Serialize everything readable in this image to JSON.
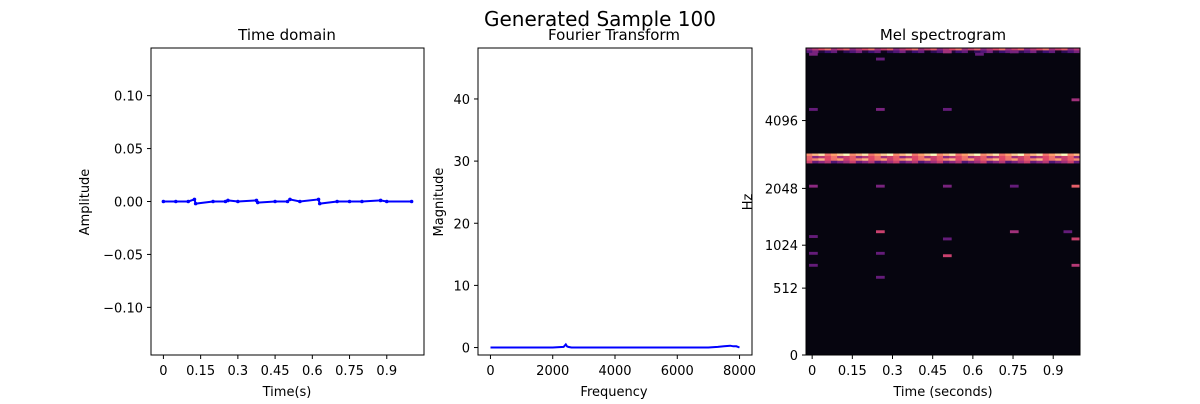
{
  "figure": {
    "suptitle": "Generated Sample 100"
  },
  "chart_data": [
    {
      "type": "line",
      "title": "Time domain",
      "xlabel": "Time(s)",
      "ylabel": "Amplitude",
      "xlim": [
        -0.05,
        1.05
      ],
      "ylim": [
        -0.145,
        0.145
      ],
      "xticks": [
        0,
        0.15,
        0.3,
        0.45,
        0.6,
        0.75,
        0.9
      ],
      "xtick_labels": [
        "0",
        "0.15",
        "0.3",
        "0.45",
        "0.6",
        "0.75",
        "0.9"
      ],
      "yticks": [
        -0.1,
        -0.05,
        0.0,
        0.05,
        0.1
      ],
      "ytick_labels": [
        "−0.10",
        "−0.05",
        "0.00",
        "0.05",
        "0.10"
      ],
      "line_color": "#0000ff",
      "series": [
        {
          "x": [
            0,
            0.05,
            0.1,
            0.125,
            0.13,
            0.2,
            0.25,
            0.26,
            0.3,
            0.375,
            0.38,
            0.45,
            0.5,
            0.51,
            0.55,
            0.625,
            0.63,
            0.7,
            0.75,
            0.8,
            0.875,
            0.9,
            1.0
          ],
          "values": [
            0.0,
            0.0,
            0.0,
            0.002,
            -0.002,
            0.0,
            0.0,
            0.001,
            0.0,
            0.001,
            -0.001,
            0.0,
            0.0,
            0.002,
            0.0,
            0.002,
            -0.002,
            0.0,
            0.0,
            0.0,
            0.001,
            0.0,
            0.0
          ]
        }
      ]
    },
    {
      "type": "line",
      "title": "Fourier Transform",
      "xlabel": "Frequency",
      "ylabel": "Magnitude",
      "xlim": [
        -400,
        8400
      ],
      "ylim": [
        -1.2,
        48.2
      ],
      "xticks": [
        0,
        2000,
        4000,
        6000,
        8000
      ],
      "xtick_labels": [
        "0",
        "2000",
        "4000",
        "6000",
        "8000"
      ],
      "yticks": [
        0,
        10,
        20,
        30,
        40
      ],
      "ytick_labels": [
        "0",
        "10",
        "20",
        "30",
        "40"
      ],
      "line_color": "#0000ff",
      "series": [
        {
          "x": [
            0,
            1000,
            2000,
            2350,
            2420,
            2460,
            2500,
            2600,
            3000,
            5000,
            7000,
            7300,
            7500,
            7700,
            7800,
            7900,
            8000
          ],
          "values": [
            0.0,
            0.0,
            0.0,
            0.1,
            0.5,
            0.2,
            0.1,
            0.0,
            0.0,
            0.0,
            0.0,
            0.1,
            0.2,
            0.3,
            0.2,
            0.2,
            0.0
          ]
        }
      ]
    },
    {
      "type": "heatmap",
      "title": "Mel spectrogram",
      "xlabel": "Time (seconds)",
      "ylabel": "Hz",
      "xlim": [
        -0.023,
        1.0
      ],
      "y_scale": "mel",
      "xticks": [
        0,
        0.15,
        0.3,
        0.45,
        0.6,
        0.75,
        0.9
      ],
      "xtick_labels": [
        "0",
        "0.15",
        "0.3",
        "0.45",
        "0.6",
        "0.75",
        "0.9"
      ],
      "yticks": [
        0,
        512,
        1024,
        2048,
        4096
      ],
      "ytick_labels": [
        "0",
        "512",
        "1024",
        "2048",
        "4096"
      ],
      "colormap": [
        "#000004",
        "#3b0f70",
        "#8c2981",
        "#de4968",
        "#fe9f6d",
        "#fcfdbf"
      ],
      "background_color": "#06050f",
      "time_frames": 44,
      "mel_bins": 128,
      "bands": [
        {
          "mel_bin": 127,
          "level": 0.55
        },
        {
          "mel_bin": 126,
          "level": 0.2
        },
        {
          "mel_bin": 83,
          "level": 0.85
        },
        {
          "mel_bin": 82,
          "level": 0.55
        },
        {
          "mel_bin": 81,
          "level": 0.7
        },
        {
          "mel_bin": 80,
          "level": 0.4
        }
      ],
      "spots": [
        {
          "t": 0.0,
          "mel_bin": 125,
          "level": 0.35
        },
        {
          "t": 0.25,
          "mel_bin": 123,
          "level": 0.3
        },
        {
          "t": 0.5,
          "mel_bin": 126,
          "level": 0.45
        },
        {
          "t": 0.62,
          "mel_bin": 125,
          "level": 0.3
        },
        {
          "t": 0.75,
          "mel_bin": 126,
          "level": 0.35
        },
        {
          "t": 0.0,
          "mel_bin": 102,
          "level": 0.3
        },
        {
          "t": 0.25,
          "mel_bin": 102,
          "level": 0.35
        },
        {
          "t": 0.5,
          "mel_bin": 102,
          "level": 0.3
        },
        {
          "t": 0.98,
          "mel_bin": 106,
          "level": 0.45
        },
        {
          "t": 0.0,
          "mel_bin": 70,
          "level": 0.4
        },
        {
          "t": 0.25,
          "mel_bin": 70,
          "level": 0.35
        },
        {
          "t": 0.5,
          "mel_bin": 70,
          "level": 0.35
        },
        {
          "t": 0.75,
          "mel_bin": 70,
          "level": 0.3
        },
        {
          "t": 0.98,
          "mel_bin": 70,
          "level": 0.65
        },
        {
          "t": 0.25,
          "mel_bin": 51,
          "level": 0.55
        },
        {
          "t": 0.75,
          "mel_bin": 51,
          "level": 0.45
        },
        {
          "t": 0.95,
          "mel_bin": 51,
          "level": 0.3
        },
        {
          "t": 0.0,
          "mel_bin": 49,
          "level": 0.3
        },
        {
          "t": 0.5,
          "mel_bin": 48,
          "level": 0.3
        },
        {
          "t": 0.98,
          "mel_bin": 48,
          "level": 0.55
        },
        {
          "t": 0.0,
          "mel_bin": 42,
          "level": 0.3
        },
        {
          "t": 0.25,
          "mel_bin": 42,
          "level": 0.3
        },
        {
          "t": 0.5,
          "mel_bin": 41,
          "level": 0.55
        },
        {
          "t": 0.0,
          "mel_bin": 37,
          "level": 0.3
        },
        {
          "t": 0.98,
          "mel_bin": 37,
          "level": 0.5
        },
        {
          "t": 0.25,
          "mel_bin": 32,
          "level": 0.3
        }
      ]
    }
  ]
}
